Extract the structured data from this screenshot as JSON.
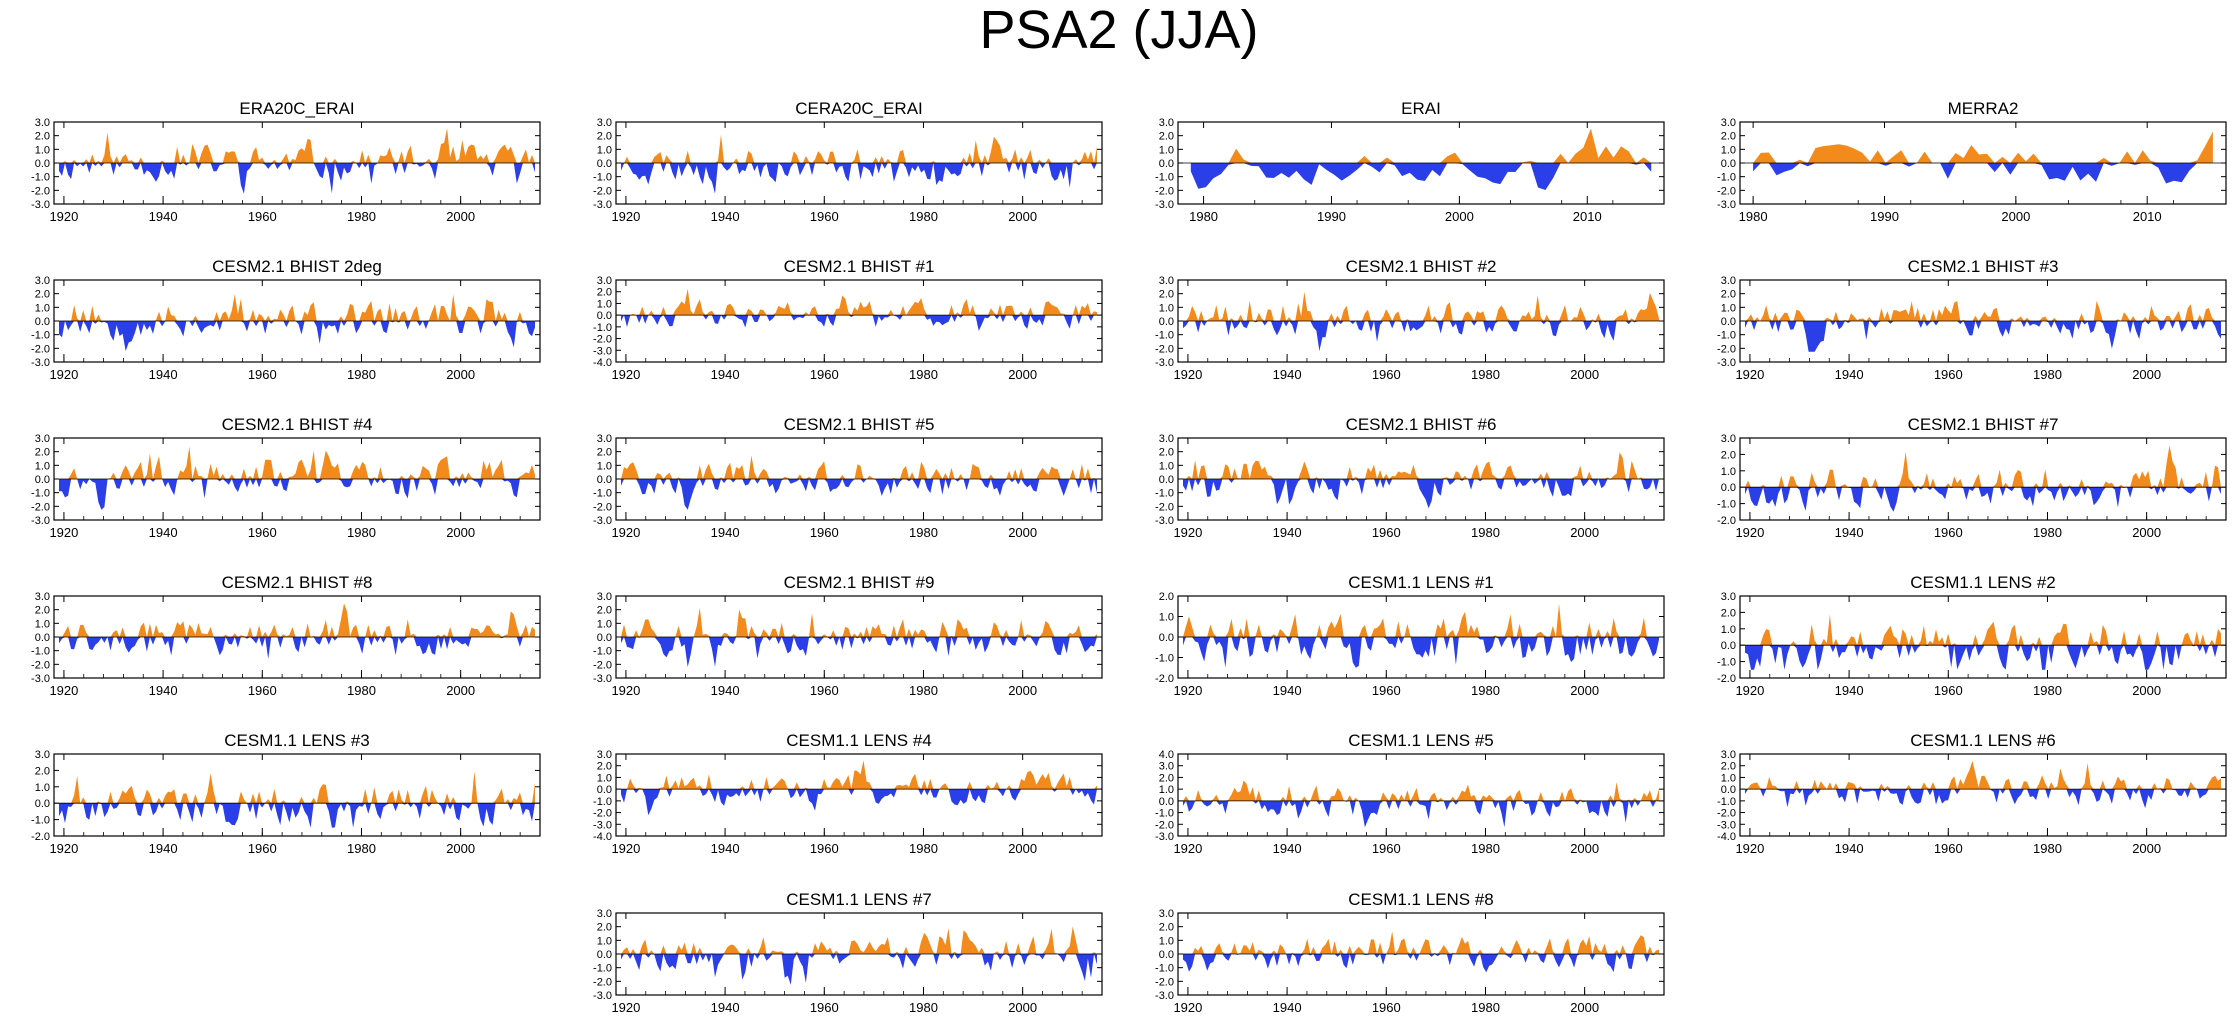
{
  "title": "PSA2 (JJA)",
  "colors": {
    "positive": "#f28a1c",
    "negative": "#2b3fe8",
    "axis": "#000000"
  },
  "chart_data": [
    {
      "type": "area",
      "title": "ERA20C_ERAI",
      "xlim": [
        1918,
        2016
      ],
      "ylim": [
        -3,
        3
      ],
      "yticks": [
        "3.0",
        "2.0",
        "1.0",
        "0.0",
        "-1.0",
        "-2.0",
        "-3.0"
      ],
      "xticks": [
        "1920",
        "1940",
        "1960",
        "1980",
        "2000"
      ],
      "seed": 11,
      "amp": 1.0
    },
    {
      "type": "area",
      "title": "CERA20C_ERAI",
      "xlim": [
        1918,
        2016
      ],
      "ylim": [
        -3,
        3
      ],
      "yticks": [
        "3.0",
        "2.0",
        "1.0",
        "0.0",
        "-1.0",
        "-2.0",
        "-3.0"
      ],
      "xticks": [
        "1920",
        "1940",
        "1960",
        "1980",
        "2000"
      ],
      "seed": 23,
      "amp": 1.0
    },
    {
      "type": "area",
      "title": "ERAI",
      "xlim": [
        1978,
        2016
      ],
      "ylim": [
        -3,
        3
      ],
      "yticks": [
        "3.0",
        "2.0",
        "1.0",
        "0.0",
        "-1.0",
        "-2.0",
        "-3.0"
      ],
      "xticks": [
        "1980",
        "1990",
        "2000",
        "2010"
      ],
      "seed": 37,
      "amp": 1.1
    },
    {
      "type": "area",
      "title": "MERRA2",
      "xlim": [
        1979,
        2016
      ],
      "ylim": [
        -3,
        3
      ],
      "yticks": [
        "3.0",
        "2.0",
        "1.0",
        "0.0",
        "-1.0",
        "-2.0",
        "-3.0"
      ],
      "xticks": [
        "1980",
        "1990",
        "2000",
        "2010"
      ],
      "seed": 41,
      "amp": 1.1
    },
    {
      "type": "area",
      "title": "CESM2.1 BHIST 2deg",
      "xlim": [
        1918,
        2016
      ],
      "ylim": [
        -3,
        3
      ],
      "yticks": [
        "3.0",
        "2.0",
        "1.0",
        "0.0",
        "-1.0",
        "-2.0",
        "-3.0"
      ],
      "xticks": [
        "1920",
        "1940",
        "1960",
        "1980",
        "2000"
      ],
      "seed": 53,
      "amp": 1.0
    },
    {
      "type": "area",
      "title": "CESM2.1 BHIST #1",
      "xlim": [
        1918,
        2016
      ],
      "ylim": [
        -4,
        3
      ],
      "yticks": [
        "3.0",
        "2.0",
        "1.0",
        "0.0",
        "-1.0",
        "-2.0",
        "-3.0",
        "-4.0"
      ],
      "xticks": [
        "1920",
        "1940",
        "1960",
        "1980",
        "2000"
      ],
      "seed": 61,
      "amp": 1.0
    },
    {
      "type": "area",
      "title": "CESM2.1 BHIST #2",
      "xlim": [
        1918,
        2016
      ],
      "ylim": [
        -3,
        3
      ],
      "yticks": [
        "3.0",
        "2.0",
        "1.0",
        "0.0",
        "-1.0",
        "-2.0",
        "-3.0"
      ],
      "xticks": [
        "1920",
        "1940",
        "1960",
        "1980",
        "2000"
      ],
      "seed": 71,
      "amp": 1.0
    },
    {
      "type": "area",
      "title": "CESM2.1 BHIST #3",
      "xlim": [
        1918,
        2016
      ],
      "ylim": [
        -3,
        3
      ],
      "yticks": [
        "3.0",
        "2.0",
        "1.0",
        "0.0",
        "-1.0",
        "-2.0",
        "-3.0"
      ],
      "xticks": [
        "1920",
        "1940",
        "1960",
        "1980",
        "2000"
      ],
      "seed": 83,
      "amp": 1.0
    },
    {
      "type": "area",
      "title": "CESM2.1 BHIST #4",
      "xlim": [
        1918,
        2016
      ],
      "ylim": [
        -3,
        3
      ],
      "yticks": [
        "3.0",
        "2.0",
        "1.0",
        "0.0",
        "-1.0",
        "-2.0",
        "-3.0"
      ],
      "xticks": [
        "1920",
        "1940",
        "1960",
        "1980",
        "2000"
      ],
      "seed": 97,
      "amp": 1.0
    },
    {
      "type": "area",
      "title": "CESM2.1 BHIST #5",
      "xlim": [
        1918,
        2016
      ],
      "ylim": [
        -3,
        3
      ],
      "yticks": [
        "3.0",
        "2.0",
        "1.0",
        "0.0",
        "-1.0",
        "-2.0",
        "-3.0"
      ],
      "xticks": [
        "1920",
        "1940",
        "1960",
        "1980",
        "2000"
      ],
      "seed": 101,
      "amp": 1.0
    },
    {
      "type": "area",
      "title": "CESM2.1 BHIST #6",
      "xlim": [
        1918,
        2016
      ],
      "ylim": [
        -3,
        3
      ],
      "yticks": [
        "3.0",
        "2.0",
        "1.0",
        "0.0",
        "-1.0",
        "-2.0",
        "-3.0"
      ],
      "xticks": [
        "1920",
        "1940",
        "1960",
        "1980",
        "2000"
      ],
      "seed": 113,
      "amp": 1.0
    },
    {
      "type": "area",
      "title": "CESM2.1 BHIST #7",
      "xlim": [
        1918,
        2016
      ],
      "ylim": [
        -2,
        3
      ],
      "yticks": [
        "3.0",
        "2.0",
        "1.0",
        "0.0",
        "-1.0",
        "-2.0"
      ],
      "xticks": [
        "1920",
        "1940",
        "1960",
        "1980",
        "2000"
      ],
      "seed": 127,
      "amp": 0.9
    },
    {
      "type": "area",
      "title": "CESM2.1 BHIST #8",
      "xlim": [
        1918,
        2016
      ],
      "ylim": [
        -3,
        3
      ],
      "yticks": [
        "3.0",
        "2.0",
        "1.0",
        "0.0",
        "-1.0",
        "-2.0",
        "-3.0"
      ],
      "xticks": [
        "1920",
        "1940",
        "1960",
        "1980",
        "2000"
      ],
      "seed": 131,
      "amp": 1.0
    },
    {
      "type": "area",
      "title": "CESM2.1 BHIST #9",
      "xlim": [
        1918,
        2016
      ],
      "ylim": [
        -3,
        3
      ],
      "yticks": [
        "3.0",
        "2.0",
        "1.0",
        "0.0",
        "-1.0",
        "-2.0",
        "-3.0"
      ],
      "xticks": [
        "1920",
        "1940",
        "1960",
        "1980",
        "2000"
      ],
      "seed": 139,
      "amp": 1.0
    },
    {
      "type": "area",
      "title": "CESM1.1 LENS #1",
      "xlim": [
        1918,
        2016
      ],
      "ylim": [
        -2,
        2
      ],
      "yticks": [
        "2.0",
        "1.0",
        "0.0",
        "-1.0",
        "-2.0"
      ],
      "xticks": [
        "1920",
        "1940",
        "1960",
        "1980",
        "2000"
      ],
      "seed": 149,
      "amp": 0.9
    },
    {
      "type": "area",
      "title": "CESM1.1 LENS #2",
      "xlim": [
        1918,
        2016
      ],
      "ylim": [
        -2,
        3
      ],
      "yticks": [
        "3.0",
        "2.0",
        "1.0",
        "0.0",
        "-1.0",
        "-2.0"
      ],
      "xticks": [
        "1920",
        "1940",
        "1960",
        "1980",
        "2000"
      ],
      "seed": 157,
      "amp": 1.0
    },
    {
      "type": "area",
      "title": "CESM1.1 LENS #3",
      "xlim": [
        1918,
        2016
      ],
      "ylim": [
        -2,
        3
      ],
      "yticks": [
        "3.0",
        "2.0",
        "1.0",
        "0.0",
        "-1.0",
        "-2.0"
      ],
      "xticks": [
        "1920",
        "1940",
        "1960",
        "1980",
        "2000"
      ],
      "seed": 163,
      "amp": 1.0
    },
    {
      "type": "area",
      "title": "CESM1.1 LENS #4",
      "xlim": [
        1918,
        2016
      ],
      "ylim": [
        -4,
        3
      ],
      "yticks": [
        "3.0",
        "2.0",
        "1.0",
        "0.0",
        "-1.0",
        "-2.0",
        "-3.0",
        "-4.0"
      ],
      "xticks": [
        "1920",
        "1940",
        "1960",
        "1980",
        "2000"
      ],
      "seed": 173,
      "amp": 1.0
    },
    {
      "type": "area",
      "title": "CESM1.1 LENS #5",
      "xlim": [
        1918,
        2016
      ],
      "ylim": [
        -3,
        4
      ],
      "yticks": [
        "4.0",
        "3.0",
        "2.0",
        "1.0",
        "0.0",
        "-1.0",
        "-2.0",
        "-3.0"
      ],
      "xticks": [
        "1920",
        "1940",
        "1960",
        "1980",
        "2000"
      ],
      "seed": 181,
      "amp": 1.0
    },
    {
      "type": "area",
      "title": "CESM1.1 LENS #6",
      "xlim": [
        1918,
        2016
      ],
      "ylim": [
        -4,
        3
      ],
      "yticks": [
        "3.0",
        "2.0",
        "1.0",
        "0.0",
        "-1.0",
        "-2.0",
        "-3.0",
        "-4.0"
      ],
      "xticks": [
        "1920",
        "1940",
        "1960",
        "1980",
        "2000"
      ],
      "seed": 191,
      "amp": 1.0
    },
    {
      "type": "area",
      "title": "CESM1.1 LENS #7",
      "xlim": [
        1918,
        2016
      ],
      "ylim": [
        -3,
        3
      ],
      "yticks": [
        "3.0",
        "2.0",
        "1.0",
        "0.0",
        "-1.0",
        "-2.0",
        "-3.0"
      ],
      "xticks": [
        "1920",
        "1940",
        "1960",
        "1980",
        "2000"
      ],
      "seed": 197,
      "amp": 1.0
    },
    {
      "type": "area",
      "title": "CESM1.1 LENS #8",
      "xlim": [
        1918,
        2016
      ],
      "ylim": [
        -3,
        3
      ],
      "yticks": [
        "3.0",
        "2.0",
        "1.0",
        "0.0",
        "-1.0",
        "-2.0",
        "-3.0"
      ],
      "xticks": [
        "1920",
        "1940",
        "1960",
        "1980",
        "2000"
      ],
      "seed": 211,
      "amp": 1.0
    }
  ]
}
